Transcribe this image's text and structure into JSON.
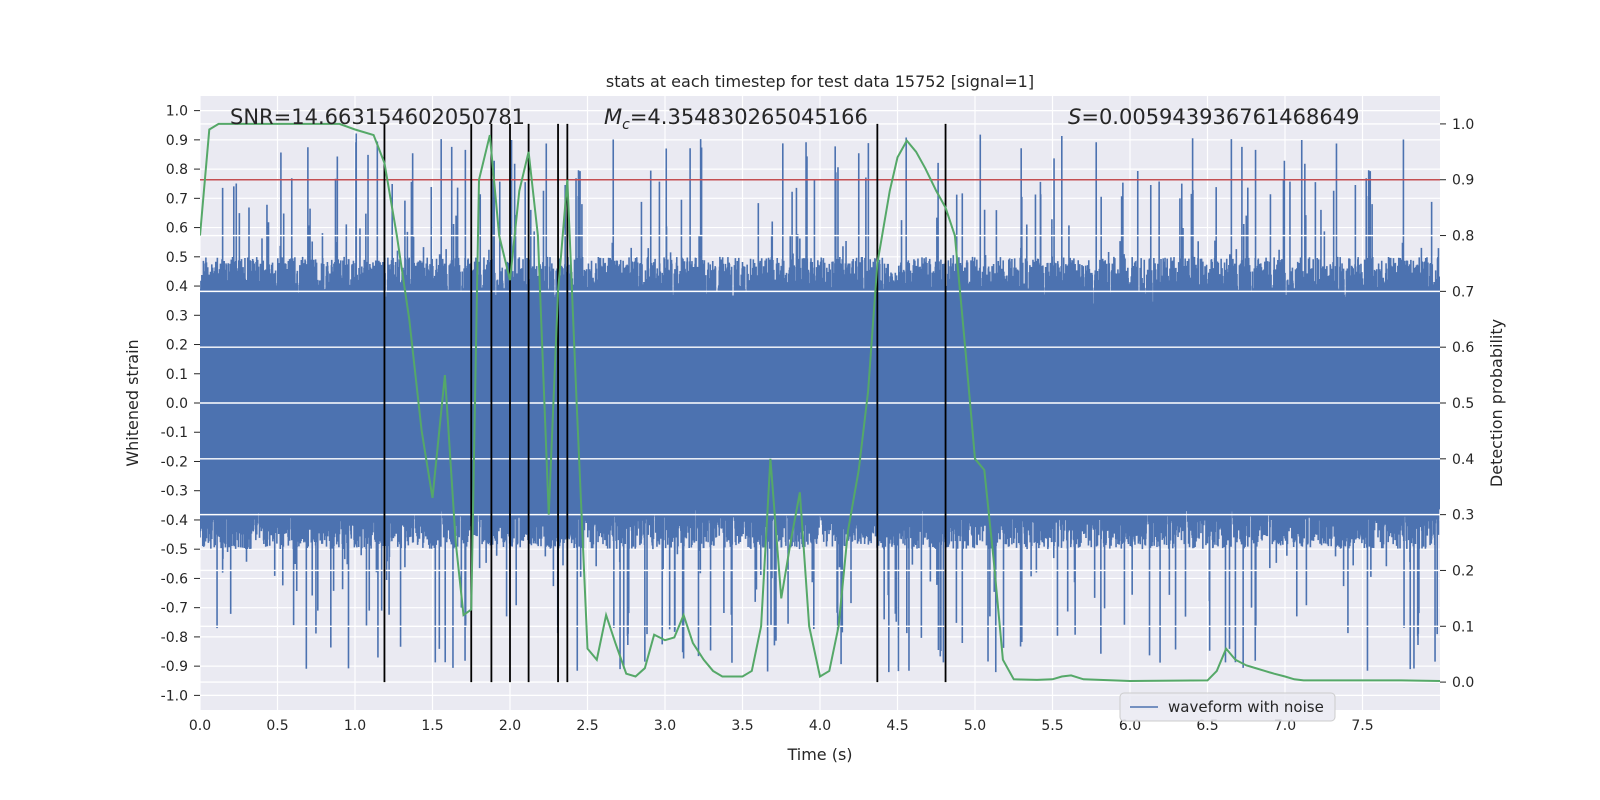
{
  "chart_data": {
    "type": "line",
    "title": "stats at each timestep for test data 15752 [signal=1]",
    "xlabel": "Time (s)",
    "ylabel": "Whitened strain",
    "y2label": "Detection probability",
    "xlim": [
      0.0,
      8.0
    ],
    "ylim": [
      -1.05,
      1.05
    ],
    "y2lim": [
      -0.05,
      1.05
    ],
    "xticks": [
      "0.0",
      "0.5",
      "1.0",
      "1.5",
      "2.0",
      "2.5",
      "3.0",
      "3.5",
      "4.0",
      "4.5",
      "5.0",
      "5.5",
      "6.0",
      "6.5",
      "7.0",
      "7.5"
    ],
    "yticks": [
      "1.0",
      "0.9",
      "0.8",
      "0.7",
      "0.6",
      "0.5",
      "0.4",
      "0.3",
      "0.2",
      "0.1",
      "0.0",
      "-0.1",
      "-0.2",
      "-0.3",
      "-0.4",
      "-0.5",
      "-0.6",
      "-0.7",
      "-0.8",
      "-0.9",
      "-1.0"
    ],
    "y2ticks": [
      "1.0",
      "0.9",
      "0.8",
      "0.7",
      "0.6",
      "0.5",
      "0.4",
      "0.3",
      "0.2",
      "0.1",
      "0.0"
    ],
    "annotations": {
      "snr": "SNR=14.663154602050781",
      "mc_symbol": "M",
      "mc_sub": "c",
      "mc_value": "=4.354830265045166",
      "s_symbol": "S",
      "s_value": "=0.005943936761468649"
    },
    "threshold": {
      "value": 0.9,
      "axis": "y2",
      "color": "#c44e52"
    },
    "vlines": [
      1.19,
      1.75,
      1.88,
      2.0,
      2.12,
      2.31,
      2.37,
      4.37,
      4.81
    ],
    "series": [
      {
        "name": "waveform with noise",
        "axis": "y",
        "color": "#4c72b0",
        "kind": "noise",
        "core_amplitude": 0.4,
        "peak_amplitude": 0.98
      },
      {
        "name": "detection probability",
        "axis": "y2",
        "color": "#55a868",
        "x": [
          0.0,
          0.06,
          0.12,
          0.25,
          0.5,
          0.75,
          0.9,
          1.0,
          1.12,
          1.19,
          1.27,
          1.35,
          1.43,
          1.5,
          1.58,
          1.65,
          1.7,
          1.75,
          1.8,
          1.87,
          1.93,
          2.0,
          2.06,
          2.12,
          2.18,
          2.25,
          2.31,
          2.37,
          2.43,
          2.5,
          2.56,
          2.62,
          2.68,
          2.75,
          2.81,
          2.87,
          2.93,
          3.0,
          3.06,
          3.12,
          3.18,
          3.25,
          3.31,
          3.37,
          3.43,
          3.5,
          3.56,
          3.62,
          3.68,
          3.75,
          3.81,
          3.87,
          3.93,
          4.0,
          4.06,
          4.12,
          4.18,
          4.25,
          4.31,
          4.37,
          4.45,
          4.5,
          4.56,
          4.62,
          4.68,
          4.75,
          4.81,
          4.87,
          4.93,
          5.0,
          5.06,
          5.12,
          5.18,
          5.25,
          5.4,
          5.5,
          5.56,
          5.62,
          5.7,
          6.0,
          6.5,
          6.56,
          6.62,
          6.68,
          6.75,
          6.81,
          6.87,
          6.93,
          7.0,
          7.06,
          7.12,
          7.5,
          7.75,
          8.0
        ],
        "values": [
          0.8,
          0.99,
          1.0,
          1.0,
          1.0,
          1.0,
          1.0,
          0.99,
          0.98,
          0.93,
          0.8,
          0.65,
          0.45,
          0.33,
          0.55,
          0.25,
          0.12,
          0.13,
          0.9,
          0.98,
          0.8,
          0.72,
          0.88,
          0.95,
          0.8,
          0.3,
          0.7,
          0.9,
          0.5,
          0.06,
          0.04,
          0.12,
          0.07,
          0.015,
          0.01,
          0.025,
          0.085,
          0.075,
          0.08,
          0.12,
          0.07,
          0.04,
          0.02,
          0.01,
          0.01,
          0.01,
          0.02,
          0.1,
          0.4,
          0.15,
          0.25,
          0.34,
          0.1,
          0.01,
          0.02,
          0.1,
          0.27,
          0.38,
          0.52,
          0.75,
          0.88,
          0.94,
          0.97,
          0.95,
          0.92,
          0.88,
          0.85,
          0.8,
          0.62,
          0.4,
          0.38,
          0.22,
          0.04,
          0.005,
          0.004,
          0.005,
          0.01,
          0.012,
          0.005,
          0.002,
          0.003,
          0.02,
          0.06,
          0.04,
          0.03,
          0.025,
          0.02,
          0.015,
          0.01,
          0.005,
          0.003,
          0.003,
          0.003,
          0.002
        ]
      }
    ],
    "legend": {
      "label": "waveform with noise",
      "position": "lower-right"
    }
  }
}
